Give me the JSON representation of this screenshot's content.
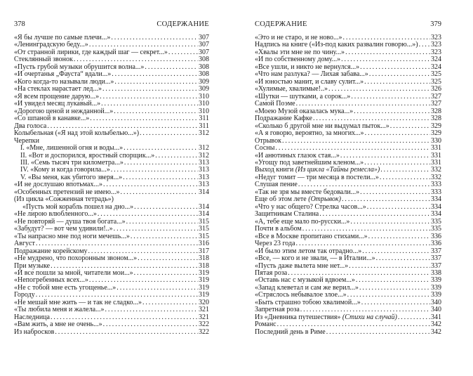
{
  "left_page": {
    "number": "378",
    "running_head": "СОДЕРЖАНИЕ",
    "entries": [
      {
        "title": "«Я бы лучше по самые плечи...»",
        "page": "307"
      },
      {
        "title": "«Ленинградскую беду...»",
        "page": "307"
      },
      {
        "title": "«От странной лирики, где каждый шаг — секрет...»",
        "page": "307"
      },
      {
        "title": "Стеклянный звонок",
        "page": "308"
      },
      {
        "title": "«Пусть грубой музыки обрушится волна...»",
        "page": "308"
      },
      {
        "title": "«И очертанья „Фауста“ вдали...»",
        "page": "308"
      },
      {
        "title": "«Кого когда-то называли люди...»",
        "page": "309"
      },
      {
        "title": "«На стеклах нарастает лед...»",
        "page": "309"
      },
      {
        "title": "«Я всем прощение дарую...»",
        "page": "310"
      },
      {
        "title": "«И увидел месяц лукавый...»",
        "page": "310"
      },
      {
        "title": "«Дорогою ценой и нежданной...»",
        "page": "310"
      },
      {
        "title": "«Со шпаной в канавке...»",
        "page": "311"
      },
      {
        "title": "Два голоса",
        "page": "311"
      },
      {
        "title": "Колыбельная («Я над этой колыбелью...»)",
        "page": "312"
      },
      {
        "title": "Черепки",
        "page": ""
      },
      {
        "title": "I. «Мне, лишенной огня и воды...»",
        "page": "312",
        "indent": 1
      },
      {
        "title": "II. «Вот и доспорился, яростный спорщик...»",
        "page": "312",
        "indent": 1
      },
      {
        "title": "III. «Семь тысяч три километра...»",
        "page": "313",
        "indent": 1
      },
      {
        "title": "IV. «Кому и когда говорила...»",
        "page": "313",
        "indent": 1
      },
      {
        "title": "V. «Вы меня, как убитого зверя...»",
        "page": "313",
        "indent": 1
      },
      {
        "title": "«И не дослушаю впотьмах...»",
        "page": "313"
      },
      {
        "title": "«Особенных претензий не имею...»",
        "page": "314"
      },
      {
        "title": "(Из цикла «Сожженная тетрадь»)",
        "page": ""
      },
      {
        "title": "«Пусть мой корабль пошел на дно...»",
        "page": "314",
        "indent": 2
      },
      {
        "title": "«Не лирою влюбленного...»",
        "page": "314"
      },
      {
        "title": "«Не повторяй — душа твоя богата...»",
        "page": "315"
      },
      {
        "title": "«Забудут? — вот чем удивили!..»",
        "page": "315"
      },
      {
        "title": "«Ты напрасно мне под ноги мечешь...»",
        "page": "315"
      },
      {
        "title": "Август",
        "page": "316"
      },
      {
        "title": "Подражание корейскому",
        "page": "317"
      },
      {
        "title": "«Не мудрено, что похоронным звоном...»",
        "page": "318"
      },
      {
        "title": "При музыке",
        "page": "318"
      },
      {
        "title": "«И все пошли за мной, читатели мои...»",
        "page": "319"
      },
      {
        "title": "«Непогребенных всех...»",
        "page": "319"
      },
      {
        "title": "«Не с тобой мне есть угощенье...»",
        "page": "319"
      },
      {
        "title": "Городу",
        "page": "319"
      },
      {
        "title": "«Не мешай мне жить — и так не сладко...»",
        "page": "320"
      },
      {
        "title": "«Ты любила меня и жалела...»",
        "page": "321"
      },
      {
        "title": "Наследница",
        "page": "321"
      },
      {
        "title": "«Вам жить, а мне не очень...»",
        "page": "322"
      },
      {
        "title": "Из набросков",
        "page": "322"
      }
    ]
  },
  "right_page": {
    "number": "379",
    "running_head": "СОДЕРЖАНИЕ",
    "entries": [
      {
        "title": "«Это и не старо, и не ново...»",
        "page": "323"
      },
      {
        "title": "Надпись на книге («Из-под каких развалин говорю...»)",
        "page": "323"
      },
      {
        "title": "«Хвалы эти мне не по чину...»",
        "page": "323"
      },
      {
        "title": "«И по собственному дому...»",
        "page": "324"
      },
      {
        "title": "«Все ушли, и никто не вернулся...»",
        "page": "324"
      },
      {
        "title": "«Что нам разлука? — Лихая забава...»",
        "page": "325"
      },
      {
        "title": "«И юностью манит, и славу сулит...»",
        "page": "325"
      },
      {
        "title": "«Хулимые, хвалимые!..»",
        "page": "326"
      },
      {
        "title": "«Шутки — шутками, а сорок...»",
        "page": "327"
      },
      {
        "title": "Самой Поэме",
        "page": "327"
      },
      {
        "title": "«Моею Музой оказалась мука...»",
        "page": "328"
      },
      {
        "title": "Подражание Кафке",
        "page": "328"
      },
      {
        "title": "«Сколько б другой мне ни выдумал пыток...»",
        "page": "329"
      },
      {
        "title": "«А я говорю, вероятно, за многих...»",
        "page": "329"
      },
      {
        "title": "Отрывок",
        "page": "330"
      },
      {
        "title": "Сосны",
        "page": "331"
      },
      {
        "title": "«И анютиных глазок стая...»",
        "page": "331"
      },
      {
        "title": "«Угощу под заветнейшим кленом...»",
        "page": "331"
      },
      {
        "title": "Выход книги ",
        "italic": "(Из цикла «Тайны ремесла»)",
        "page": "332"
      },
      {
        "title": "«Недуг томит — три месяца в постели...»",
        "page": "332"
      },
      {
        "title": "Слушая пение",
        "page": "333"
      },
      {
        "title": "«Так не зря мы вместе бедовали...»",
        "page": "333"
      },
      {
        "title": "Еще об этом лете ",
        "italic": "(Отрывок)",
        "page": "334"
      },
      {
        "title": "«Что у нас общего? Стрелка часов...»",
        "page": "334"
      },
      {
        "title": "Защитникам Сталина",
        "page": "334"
      },
      {
        "title": "«А, тебе еще мало по-русски...»",
        "page": "335"
      },
      {
        "title": "Почти в альбом",
        "page": "335"
      },
      {
        "title": "«Все в Москве пропитано стихами...»",
        "page": "336"
      },
      {
        "title": "Через 23 года",
        "page": "336"
      },
      {
        "title": "«И было этим летом так отрадно...»",
        "page": "337"
      },
      {
        "title": "«Все, — кого и не звали, — в Италии...»",
        "page": "337"
      },
      {
        "title": "«Пусть даже вылета мне нет...»",
        "page": "337"
      },
      {
        "title": "Пятая роза",
        "page": "338"
      },
      {
        "title": "«Оставь нас с музыкой вдвоем...»",
        "page": "339"
      },
      {
        "title": "«Запад клеветал и сам же верил...»",
        "page": "339"
      },
      {
        "title": "«Стряслось небывалое злое...»",
        "page": "339"
      },
      {
        "title": "«Быть страшно тобою хвалимой...»",
        "page": "340"
      },
      {
        "title": "Запретная роза",
        "page": "340"
      },
      {
        "title": "Из «Дневника путешествия» ",
        "italic": "(Стихи на случай)",
        "page": "341"
      },
      {
        "title": "Романс",
        "page": "342"
      },
      {
        "title": "Последний день в Риме",
        "page": "342"
      }
    ]
  }
}
